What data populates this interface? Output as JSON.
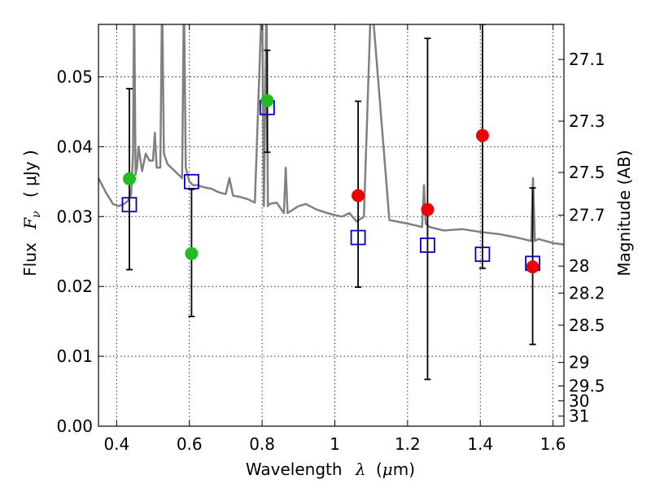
{
  "chart_data": {
    "type": "scatter",
    "xlabel_prefix": "Wavelength",
    "xlabel_lambda": "λ",
    "xlabel_unit_open": "(",
    "xlabel_unit_mu": "μ",
    "xlabel_unit_rest": "m)",
    "ylabel_prefix": "Flux",
    "ylabel_F": "F",
    "ylabel_nu": "ν",
    "ylabel_unit": "( μJy )",
    "y2label": "Magnitude (AB)",
    "xlim": [
      0.35,
      1.63
    ],
    "ylim": [
      0.0,
      0.0575
    ],
    "grid": true,
    "x_ticks": [
      {
        "value": 0.4,
        "label": "0.4"
      },
      {
        "value": 0.6,
        "label": "0.6"
      },
      {
        "value": 0.8,
        "label": "0.8"
      },
      {
        "value": 1.0,
        "label": "1"
      },
      {
        "value": 1.2,
        "label": "1.2"
      },
      {
        "value": 1.4,
        "label": "1.4"
      },
      {
        "value": 1.6,
        "label": "1.6"
      }
    ],
    "y_ticks": [
      {
        "value": 0.0,
        "label": "0.00"
      },
      {
        "value": 0.01,
        "label": "0.01"
      },
      {
        "value": 0.02,
        "label": "0.02"
      },
      {
        "value": 0.03,
        "label": "0.03"
      },
      {
        "value": 0.04,
        "label": "0.04"
      },
      {
        "value": 0.05,
        "label": "0.05"
      }
    ],
    "mag_ticks": [
      {
        "mag": 27.1,
        "label": "27.1"
      },
      {
        "mag": 27.3,
        "label": "27.3"
      },
      {
        "mag": 27.5,
        "label": "27.5"
      },
      {
        "mag": 27.7,
        "label": "27.7"
      },
      {
        "mag": 28.0,
        "label": "28"
      },
      {
        "mag": 28.2,
        "label": "28.2"
      },
      {
        "mag": 28.5,
        "label": "28.5"
      },
      {
        "mag": 29.0,
        "label": "29"
      },
      {
        "mag": 29.5,
        "label": "29.5"
      },
      {
        "mag": 30.0,
        "label": "30"
      },
      {
        "mag": 31.0,
        "label": "31"
      }
    ],
    "series": [
      {
        "name": "model template spectrum",
        "kind": "line",
        "color": "#808080",
        "x": [
          0.35,
          0.37,
          0.39,
          0.405,
          0.42,
          0.43,
          0.44,
          0.445,
          0.448,
          0.452,
          0.456,
          0.46,
          0.47,
          0.48,
          0.49,
          0.5,
          0.505,
          0.51,
          0.52,
          0.525,
          0.53,
          0.54,
          0.56,
          0.58,
          0.585,
          0.59,
          0.6,
          0.61,
          0.62,
          0.64,
          0.66,
          0.68,
          0.7,
          0.71,
          0.72,
          0.74,
          0.76,
          0.78,
          0.8,
          0.805,
          0.812,
          0.816,
          0.82,
          0.84,
          0.86,
          0.865,
          0.87,
          0.9,
          0.92,
          0.95,
          0.98,
          1.0,
          1.02,
          1.04,
          1.06,
          1.08,
          1.1,
          1.15,
          1.2,
          1.24,
          1.245,
          1.25,
          1.26,
          1.3,
          1.35,
          1.4,
          1.45,
          1.5,
          1.54,
          1.545,
          1.55,
          1.56,
          1.58,
          1.6,
          1.63
        ],
        "y": [
          0.0355,
          0.0335,
          0.0318,
          0.0315,
          0.0318,
          0.0322,
          0.0332,
          0.039,
          0.062,
          0.036,
          0.037,
          0.04,
          0.0365,
          0.039,
          0.038,
          0.038,
          0.042,
          0.037,
          0.037,
          0.062,
          0.039,
          0.0375,
          0.0365,
          0.0355,
          0.062,
          0.037,
          0.035,
          0.0345,
          0.0345,
          0.0342,
          0.034,
          0.0335,
          0.0332,
          0.0355,
          0.033,
          0.0328,
          0.0325,
          0.032,
          0.062,
          0.0315,
          0.062,
          0.0315,
          0.0318,
          0.032,
          0.0305,
          0.037,
          0.0305,
          0.0315,
          0.0318,
          0.031,
          0.0305,
          0.0302,
          0.03,
          0.0305,
          0.0293,
          0.03,
          0.062,
          0.0295,
          0.029,
          0.0285,
          0.0345,
          0.029,
          0.0285,
          0.028,
          0.0282,
          0.0278,
          0.0275,
          0.027,
          0.0265,
          0.0355,
          0.0265,
          0.0268,
          0.0265,
          0.0262,
          0.026
        ]
      },
      {
        "name": "model photometry",
        "kind": "open-square",
        "color": "#0000cc",
        "x": [
          0.435,
          0.606,
          0.814,
          1.064,
          1.255,
          1.406,
          1.544
        ],
        "y": [
          0.0317,
          0.035,
          0.0456,
          0.027,
          0.0259,
          0.0246,
          0.0233
        ]
      },
      {
        "name": "error bars",
        "kind": "errorbar",
        "color": "#000000",
        "x": [
          0.435,
          0.606,
          0.814,
          1.064,
          1.255,
          1.406,
          1.544
        ],
        "ylow": [
          0.0224,
          0.0157,
          0.0392,
          0.0199,
          0.0067,
          0.0226,
          0.0117
        ],
        "yhigh": [
          0.0483,
          0.0339,
          0.0538,
          0.0465,
          0.0555,
          0.0575,
          0.0341
        ]
      },
      {
        "name": "detections (optical)",
        "kind": "filled-circle",
        "color": "#22bb22",
        "x": [
          0.435,
          0.606,
          0.814
        ],
        "y": [
          0.0354,
          0.0247,
          0.0466
        ]
      },
      {
        "name": "detections (near-IR)",
        "kind": "filled-circle",
        "color": "#ee0000",
        "x": [
          1.064,
          1.255,
          1.406,
          1.544
        ],
        "y": [
          0.033,
          0.031,
          0.0416,
          0.0228
        ]
      }
    ]
  }
}
